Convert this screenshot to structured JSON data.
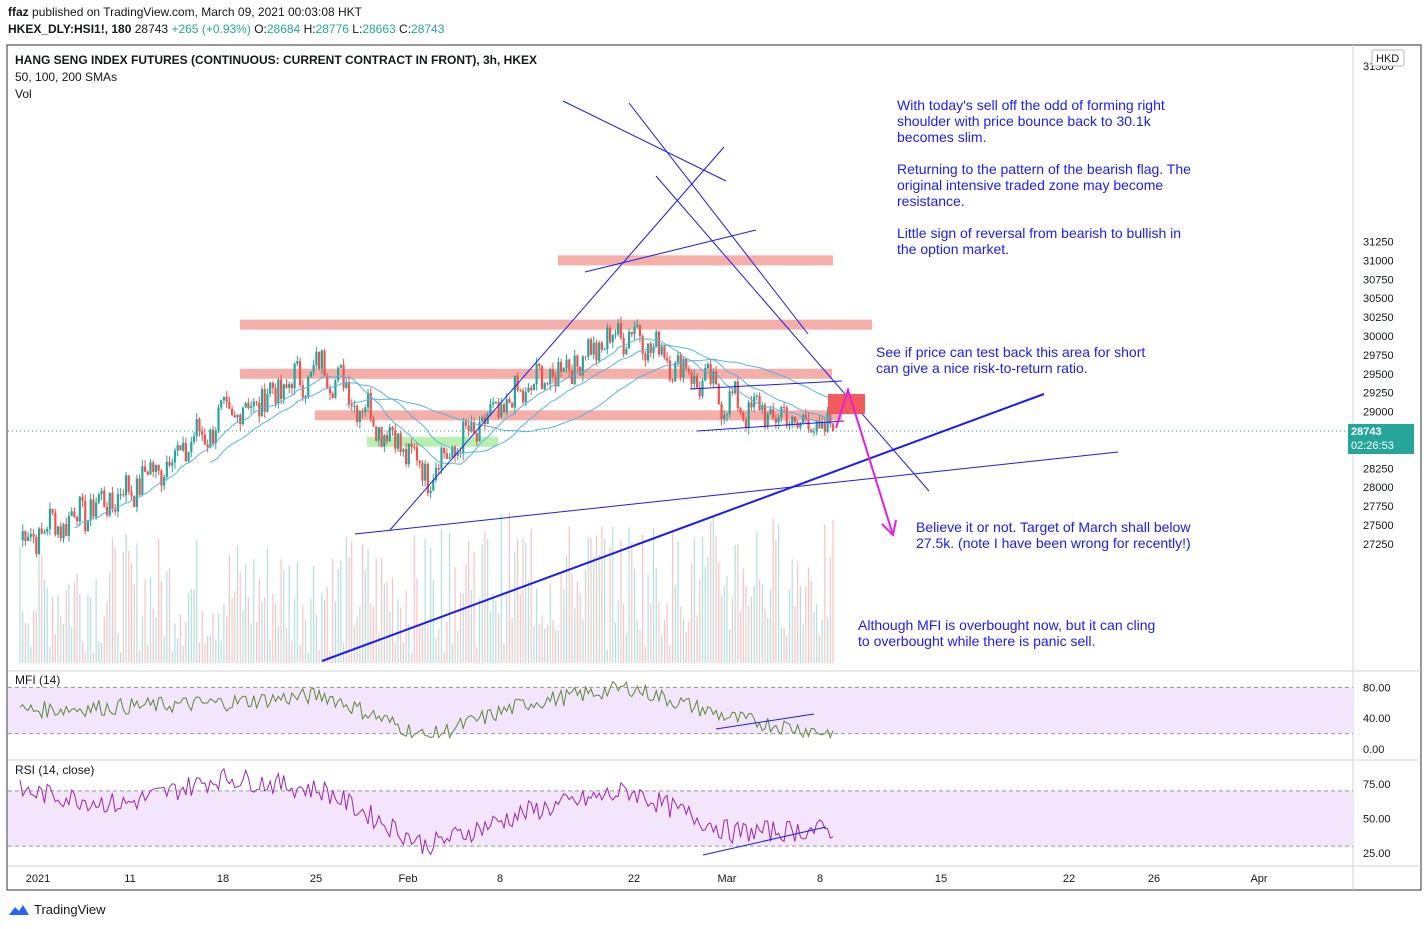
{
  "header": {
    "publisher": "ffaz",
    "published_text": "published on TradingView.com, March 09, 2021 00:03:08 HKT",
    "symbol_line": "HKEX_DLY:HSI1!, 180",
    "last": "28743",
    "change": "+265 (+0.93%)",
    "o_label": "O:",
    "o": "28684",
    "h_label": "H:",
    "h": "28776",
    "l_label": "L:",
    "l": "28663",
    "c_label": "C:",
    "c": "28743"
  },
  "legend": {
    "title": "HANG SENG INDEX FUTURES (CONTINUOUS: CURRENT CONTRACT IN FRONT), 3h, HKEX",
    "sma": "50, 100, 200 SMAs",
    "vol": "Vol",
    "currency": "HKD",
    "price_tag": "28743",
    "countdown": "02:26:53",
    "mfi_label": "MFI (14)",
    "rsi_label": "RSI (14, close)"
  },
  "annotations": {
    "note1": [
      "With today's sell off the odd of forming right",
      "shoulder with price bounce back to 30.1k",
      "becomes slim."
    ],
    "note2": [
      "Returning to the pattern of the bearish flag. The",
      "original intensive traded zone may become",
      "resistance."
    ],
    "note3": [
      "Little sign of reversal from bearish to bullish in",
      "the option market."
    ],
    "note4": [
      "See if price can test back this area for short",
      "can give a nice risk-to-return ratio."
    ],
    "note5": [
      "Believe it or not. Target of March shall below",
      "27.5k. (note I have been wrong for recently!)"
    ],
    "note6": [
      "Although MFI is overbought now, but it can cling",
      "to overbought while there is panic sell."
    ]
  },
  "footer": {
    "brand": "TradingView"
  },
  "colors": {
    "up": "#26a69a",
    "down": "#ef5350",
    "sma": "#5ab4e0",
    "annotation": "#1a1aff",
    "zone": "#f4a09a",
    "support": "#b7f0b0",
    "pane_bg": "#f3e5fb",
    "mfi_line": "#5b8a3a",
    "rsi_line": "#9c27b0",
    "price_tag": "#26a69a"
  },
  "chart_data": [
    {
      "type": "line",
      "name": "price",
      "y_ticks": [
        27250,
        27500,
        27750,
        28000,
        28250,
        28500,
        28750,
        29000,
        29250,
        29500,
        29750,
        30000,
        30250,
        30500,
        30750,
        31000,
        31250
      ],
      "x_ticks": [
        "2021",
        "11",
        "18",
        "25",
        "Feb",
        "8",
        "22",
        "Mar",
        "8",
        "15",
        "22",
        "26",
        "Apr"
      ],
      "ylim": [
        27050,
        31560
      ],
      "approx_close_path": {
        "x": [
          "2021",
          "11",
          "18",
          "25",
          "Feb",
          "8",
          "22",
          "Mar",
          "8"
        ],
        "y": [
          27300,
          27900,
          28900,
          29600,
          28200,
          29300,
          30100,
          29100,
          28743
        ]
      },
      "last_price": 28743,
      "resistance_zones": [
        31000,
        30150,
        29500,
        28950
      ],
      "support_zone": 28600,
      "sell_zone": 29100,
      "target_arrow_to": 28000
    },
    {
      "type": "line",
      "name": "MFI (14)",
      "y_ticks": [
        0,
        40,
        80
      ],
      "upper_band": 80,
      "lower_band": 20,
      "approx_path": {
        "x": [
          "2021",
          "11",
          "18",
          "25",
          "Feb",
          "8",
          "22",
          "Mar",
          "8"
        ],
        "y": [
          50,
          55,
          60,
          70,
          15,
          60,
          80,
          40,
          20
        ]
      }
    },
    {
      "type": "line",
      "name": "RSI (14, close)",
      "y_ticks": [
        25,
        50,
        75
      ],
      "upper_band": 70,
      "lower_band": 30,
      "approx_path": {
        "x": [
          "2021",
          "11",
          "18",
          "25",
          "Feb",
          "8",
          "22",
          "Mar",
          "8"
        ],
        "y": [
          70,
          60,
          80,
          70,
          30,
          55,
          70,
          40,
          42
        ]
      }
    }
  ]
}
